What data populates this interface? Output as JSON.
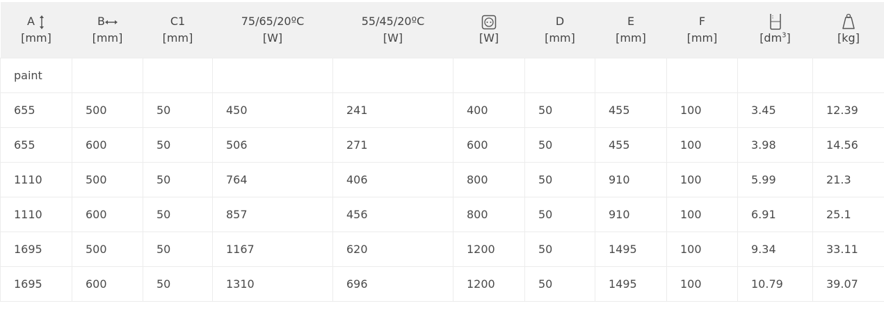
{
  "table": {
    "headers": [
      {
        "label": "A",
        "icon": "vertical-arrow-icon",
        "unit": "[mm]"
      },
      {
        "label": "B",
        "icon": "horizontal-arrow-icon",
        "unit": "[mm]"
      },
      {
        "label": "C1",
        "unit": "[mm]"
      },
      {
        "label": "75/65/20ºC",
        "unit": "[W]"
      },
      {
        "label": "55/45/20ºC",
        "unit": "[W]"
      },
      {
        "label": "",
        "icon": "power-socket-icon",
        "unit": "[W]"
      },
      {
        "label": "D",
        "unit": "[mm]"
      },
      {
        "label": "E",
        "unit": "[mm]"
      },
      {
        "label": "F",
        "unit": "[mm]"
      },
      {
        "label": "",
        "icon": "water-container-icon",
        "unit": "[dm",
        "unit_sup": "3",
        "unit_end": "]"
      },
      {
        "label": "",
        "icon": "weight-icon",
        "unit": "[kg]"
      }
    ],
    "section_label": "paint",
    "rows": [
      [
        "655",
        "500",
        "50",
        "450",
        "241",
        "400",
        "50",
        "455",
        "100",
        "3.45",
        "12.39"
      ],
      [
        "655",
        "600",
        "50",
        "506",
        "271",
        "600",
        "50",
        "455",
        "100",
        "3.98",
        "14.56"
      ],
      [
        "1110",
        "500",
        "50",
        "764",
        "406",
        "800",
        "50",
        "910",
        "100",
        "5.99",
        "21.3"
      ],
      [
        "1110",
        "600",
        "50",
        "857",
        "456",
        "800",
        "50",
        "910",
        "100",
        "6.91",
        "25.1"
      ],
      [
        "1695",
        "500",
        "50",
        "1167",
        "620",
        "1200",
        "50",
        "1495",
        "100",
        "9.34",
        "33.11"
      ],
      [
        "1695",
        "600",
        "50",
        "1310",
        "696",
        "1200",
        "50",
        "1495",
        "100",
        "10.79",
        "39.07"
      ]
    ]
  }
}
